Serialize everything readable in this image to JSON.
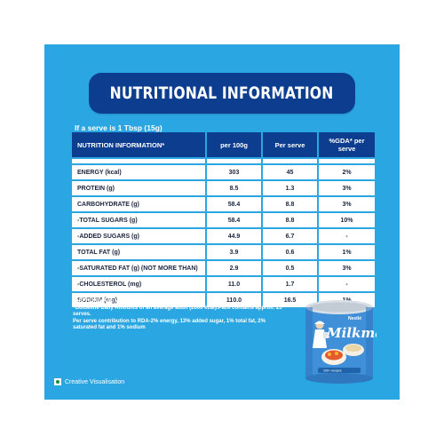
{
  "title": "NUTRITIONAL INFORMATION",
  "serve_note": "If a serve is 1 Tbsp (15g)",
  "table": {
    "headers": [
      "NUTRITION INFORMATION*",
      "per 100g",
      "Per serve",
      "%GDA* per serve"
    ],
    "rows": [
      {
        "label": "ENERGY (kcal)",
        "per100g": "303",
        "perServe": "45",
        "gda": "2%"
      },
      {
        "label": "PROTEIN (g)",
        "per100g": "8.5",
        "perServe": "1.3",
        "gda": "3%"
      },
      {
        "label": "CARBOHYDRATE (g)",
        "per100g": "58.4",
        "perServe": "8.8",
        "gda": "3%"
      },
      {
        "label": "-TOTAL SUGARS (g)",
        "per100g": "58.4",
        "perServe": "8.8",
        "gda": "10%"
      },
      {
        "label": "-ADDED SUGARS (g)",
        "per100g": "44.9",
        "perServe": "6.7",
        "gda": "-"
      },
      {
        "label": "TOTAL FAT (g)",
        "per100g": "3.9",
        "perServe": "0.6",
        "gda": "1%"
      },
      {
        "label": "-SATURATED FAT (g) (NOT MORE THAN)",
        "per100g": "2.9",
        "perServe": "0.5",
        "gda": "3%"
      },
      {
        "label": "-CHOLESTEROL (mg)",
        "per100g": "11.0",
        "perServe": "1.7",
        "gda": "-"
      },
      {
        "label": "SODIUM (mg)",
        "per100g": "110.0",
        "perServe": "16.5",
        "gda": "1%"
      }
    ]
  },
  "footnotes": [
    "*APPROXIMATE VALUES",
    "*Guideline Daily Amounts of an average adult (2000 kcal).Pack contains approx. 25 serves.",
    "Per serve contribution to RDA-2% energy, 13% added sugar, 1% total fat, 2% saturated fat and 1% sodium"
  ],
  "visual_note": "Creative Visualisation",
  "can": {
    "maker": "Nestlé",
    "brand": "Milkmaid",
    "tagline": "100+ recipes ",
    "colors": {
      "can_blue": "#3f8fd9",
      "can_rim": "#d9dfe6",
      "brand_white": "#ffffff",
      "stripe_red": "#d8333a"
    }
  },
  "colors": {
    "background": "#2aa6e3",
    "header_navy": "#0d3d8f",
    "cell_white": "#ffffff",
    "text_dark": "#1a2540"
  }
}
